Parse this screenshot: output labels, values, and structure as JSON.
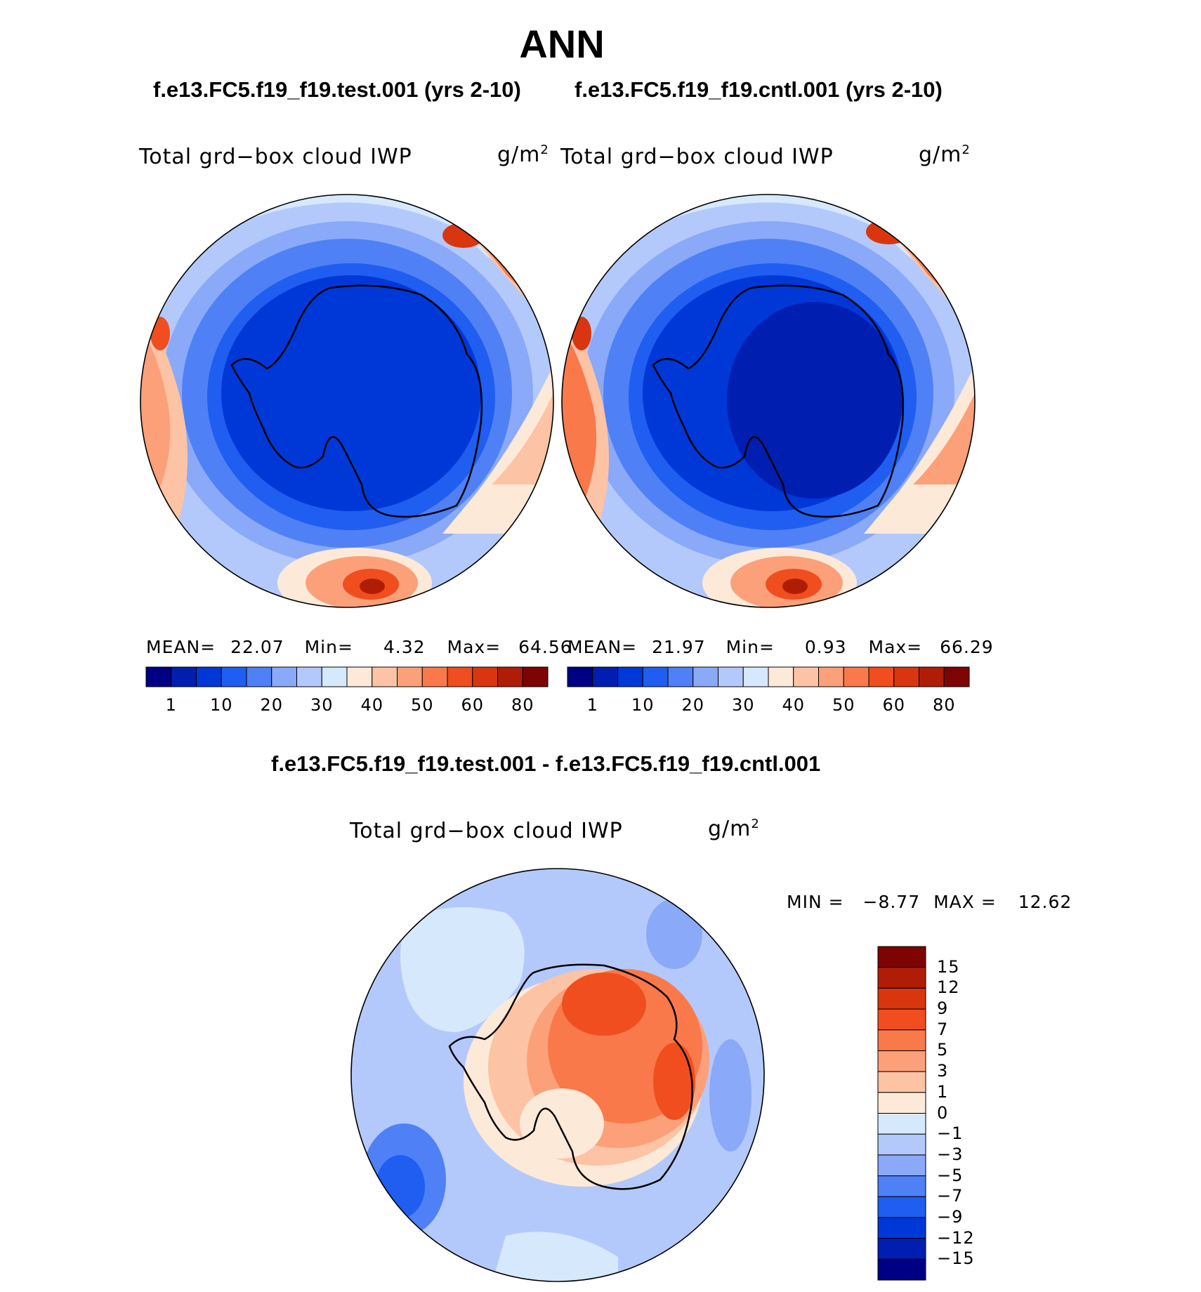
{
  "title": "ANN",
  "variable": "Total grd−box cloud IWP",
  "units_base": "g/m",
  "units_exp": "2",
  "colors": {
    "abs_scale": [
      "#000085",
      "#001fb0",
      "#0038d8",
      "#1f5ef0",
      "#4f80f5",
      "#8aa9f8",
      "#b4c9fb",
      "#d6e8fb",
      "#fde9d7",
      "#fdc3a5",
      "#fca07a",
      "#f9794b",
      "#f04e1f",
      "#d93610",
      "#b01d07",
      "#7e0303"
    ],
    "diff_scale": [
      "#7e0303",
      "#b01d07",
      "#d93610",
      "#f04e1f",
      "#f9794b",
      "#fca07a",
      "#fdc3a5",
      "#fde9d7",
      "#d6e8fb",
      "#b4c9fb",
      "#8aa9f8",
      "#4f80f5",
      "#1f5ef0",
      "#0038d8",
      "#001fb0",
      "#000085"
    ]
  },
  "panels": [
    {
      "run": "f.e13.FC5.f19_f19.test.001 (yrs 2-10)",
      "mean_label": "MEAN=",
      "mean": "22.07",
      "min_label": "Min=",
      "min": "4.32",
      "max_label": "Max=",
      "max": "64.56",
      "ticks": [
        "1",
        "10",
        "20",
        "30",
        "40",
        "50",
        "60",
        "80"
      ]
    },
    {
      "run": "f.e13.FC5.f19_f19.cntl.001 (yrs 2-10)",
      "mean_label": "MEAN=",
      "mean": "21.97",
      "min_label": "Min=",
      "min": "0.93",
      "max_label": "Max=",
      "max": "66.29",
      "ticks": [
        "1",
        "10",
        "20",
        "30",
        "40",
        "50",
        "60",
        "80"
      ]
    }
  ],
  "diff": {
    "run": "f.e13.FC5.f19_f19.test.001 - f.e13.FC5.f19_f19.cntl.001",
    "min_label": "MIN =",
    "min": "−8.77",
    "max_label": "MAX =",
    "max": "12.62",
    "ticks": [
      "15",
      "12",
      "9",
      "7",
      "5",
      "3",
      "1",
      "0",
      "−1",
      "−3",
      "−5",
      "−7",
      "−9",
      "−12",
      "−15"
    ]
  },
  "chart_data": [
    {
      "type": "heatmap",
      "projection": "south-polar-stereographic",
      "title": "Total grd−box cloud IWP",
      "units": "g/m2",
      "run": "f.e13.FC5.f19_f19.test.001 (yrs 2-10)",
      "mean": 22.07,
      "min": 4.32,
      "max": 64.56,
      "contour_levels": [
        1,
        5,
        10,
        15,
        20,
        25,
        30,
        35,
        40,
        45,
        50,
        55,
        60,
        70,
        80
      ]
    },
    {
      "type": "heatmap",
      "projection": "south-polar-stereographic",
      "title": "Total grd−box cloud IWP",
      "units": "g/m2",
      "run": "f.e13.FC5.f19_f19.cntl.001 (yrs 2-10)",
      "mean": 21.97,
      "min": 0.93,
      "max": 66.29,
      "contour_levels": [
        1,
        5,
        10,
        15,
        20,
        25,
        30,
        35,
        40,
        45,
        50,
        55,
        60,
        70,
        80
      ]
    },
    {
      "type": "heatmap",
      "projection": "south-polar-stereographic",
      "title": "Total grd−box cloud IWP",
      "units": "g/m2",
      "run": "f.e13.FC5.f19_f19.test.001 - f.e13.FC5.f19_f19.cntl.001",
      "min": -8.77,
      "max": 12.62,
      "contour_levels": [
        -15,
        -12,
        -9,
        -7,
        -5,
        -3,
        -1,
        0,
        1,
        3,
        5,
        7,
        9,
        12,
        15
      ]
    }
  ]
}
